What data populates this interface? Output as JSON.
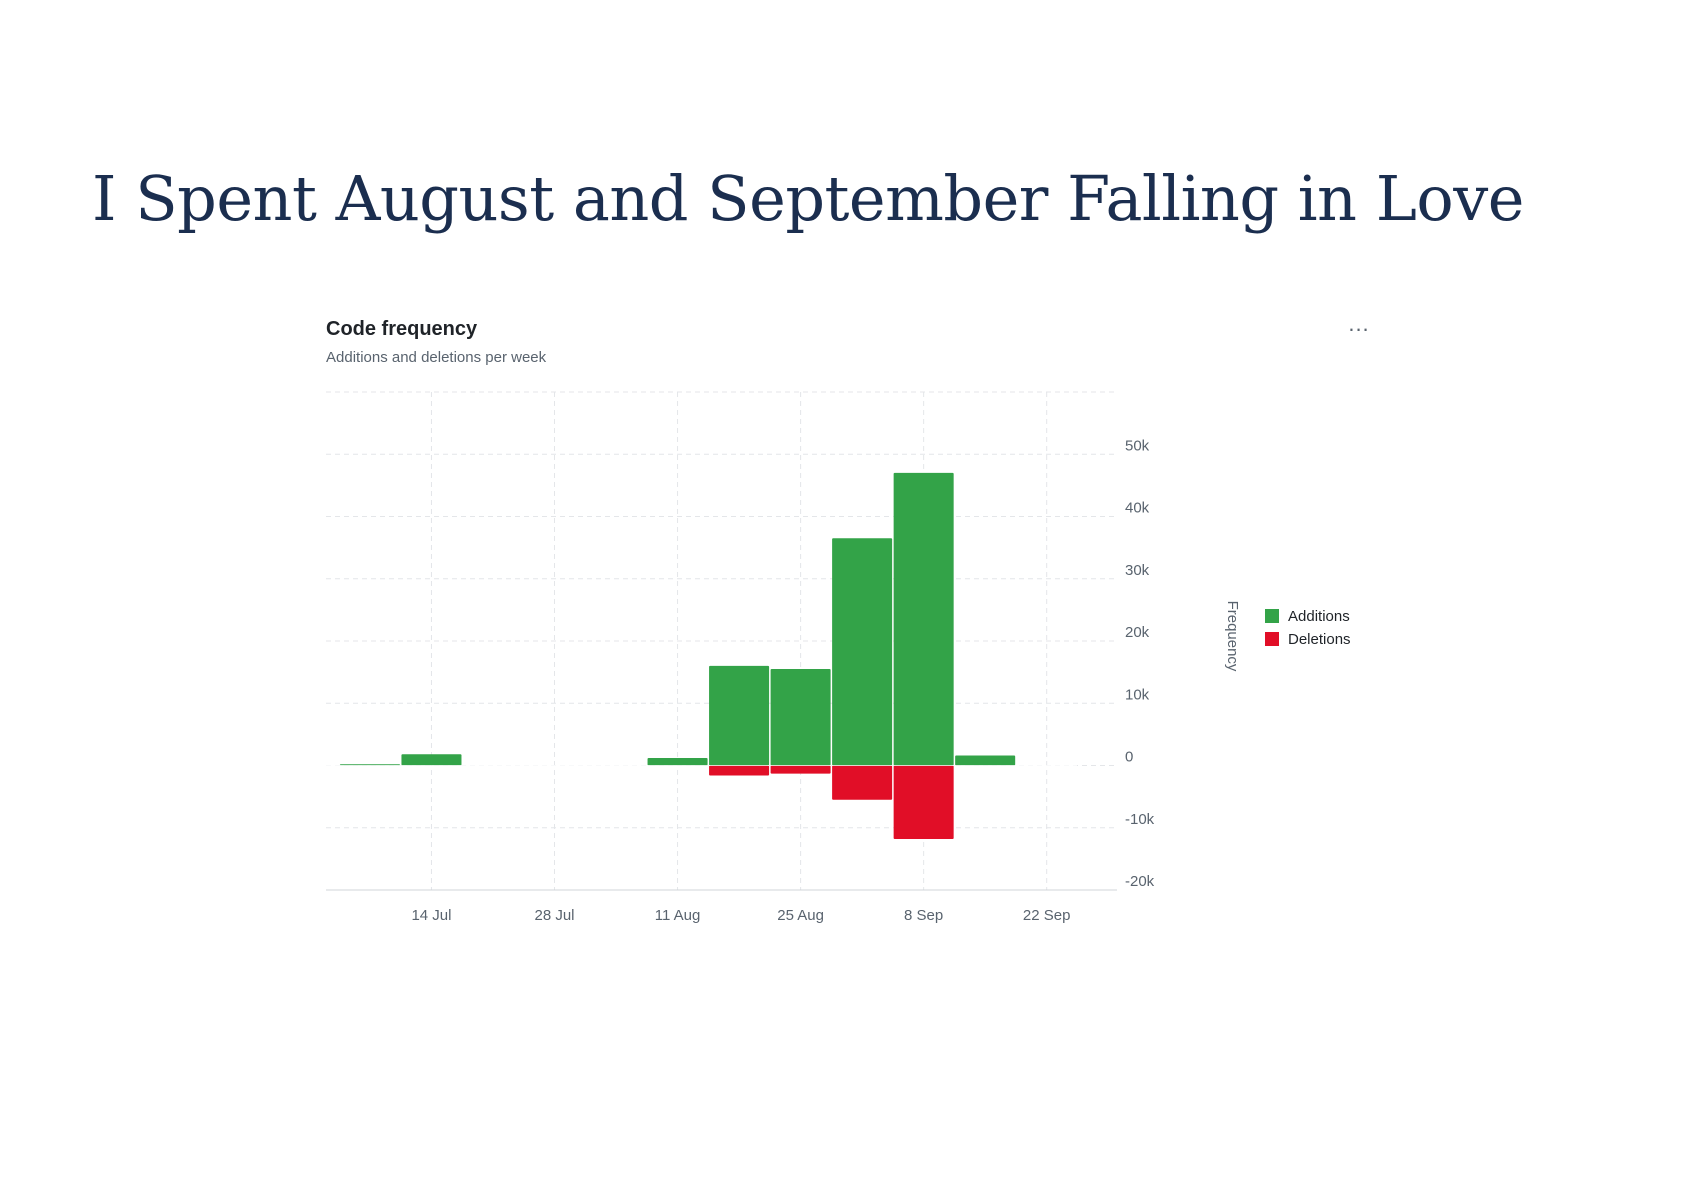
{
  "slide": {
    "title": "I Spent August and September Falling in Love"
  },
  "card": {
    "more_icon": "kebab-horizontal-icon",
    "more_label": "..."
  },
  "chart_data": {
    "type": "bar",
    "title": "Code frequency",
    "subtitle": "Additions and deletions per week",
    "xlabel": "",
    "ylabel": "Frequency",
    "ylim": [
      -20000,
      60000
    ],
    "y_ticks": [
      50000,
      40000,
      30000,
      20000,
      10000,
      0,
      -10000,
      -20000
    ],
    "y_tick_labels": [
      "50k",
      "40k",
      "30k",
      "20k",
      "10k",
      "0",
      "-10k",
      "-20k"
    ],
    "x_ticks": [
      "2024-07-14",
      "2024-07-28",
      "2024-08-11",
      "2024-08-25",
      "2024-09-08",
      "2024-09-22"
    ],
    "x_tick_labels": [
      "14 Jul",
      "28 Jul",
      "11 Aug",
      "25 Aug",
      "8 Sep",
      "22 Sep"
    ],
    "x_range": [
      "2024-07-02",
      "2024-09-30"
    ],
    "grid": true,
    "legend_position": "right",
    "categories": [
      "2024-07-07",
      "2024-07-14",
      "2024-07-21",
      "2024-07-28",
      "2024-08-04",
      "2024-08-11",
      "2024-08-18",
      "2024-08-25",
      "2024-09-01",
      "2024-09-08",
      "2024-09-15",
      "2024-09-22"
    ],
    "series": [
      {
        "name": "Additions",
        "color": "#33a348",
        "values": [
          200,
          1800,
          0,
          0,
          0,
          1200,
          16000,
          15500,
          36500,
          47000,
          1600,
          0
        ]
      },
      {
        "name": "Deletions",
        "color": "#e10e27",
        "values": [
          0,
          0,
          0,
          0,
          0,
          0,
          -1600,
          -1300,
          -5500,
          -11800,
          0,
          0
        ]
      }
    ]
  }
}
